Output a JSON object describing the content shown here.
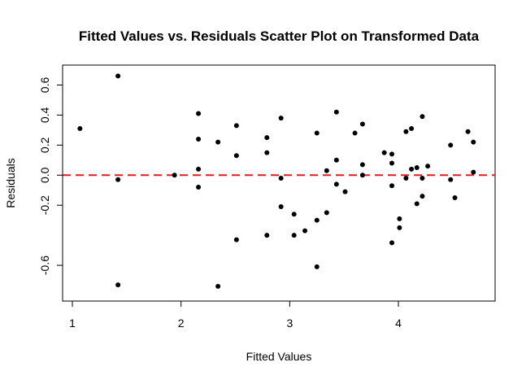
{
  "chart_data": {
    "type": "scatter",
    "title": "Fitted Values vs. Residuals Scatter Plot on Transformed Data",
    "xlabel": "Fitted Values",
    "ylabel": "Residuals",
    "xlim": [
      1.0,
      4.8
    ],
    "ylim": [
      -0.8,
      0.7
    ],
    "x_ticks": [
      1,
      2,
      3,
      4
    ],
    "x_tick_labels": [
      "1",
      "2",
      "3",
      "4"
    ],
    "y_ticks": [
      -0.6,
      -0.2,
      0.0,
      0.2,
      0.4,
      0.6
    ],
    "y_tick_labels": [
      "-0.6",
      "-0.2",
      "0.0",
      "0.2",
      "0.4",
      "0.6"
    ],
    "grid": false,
    "legend": "none",
    "reference_line": {
      "y": 0.0,
      "style": "dashed",
      "color": "#e8191f"
    },
    "point_color": "#000000",
    "points": [
      {
        "x": 1.07,
        "y": 0.31
      },
      {
        "x": 1.42,
        "y": 0.66
      },
      {
        "x": 1.42,
        "y": -0.03
      },
      {
        "x": 1.42,
        "y": -0.73
      },
      {
        "x": 1.94,
        "y": 0.0
      },
      {
        "x": 2.16,
        "y": 0.41
      },
      {
        "x": 2.16,
        "y": 0.24
      },
      {
        "x": 2.16,
        "y": 0.04
      },
      {
        "x": 2.16,
        "y": -0.08
      },
      {
        "x": 2.34,
        "y": 0.22
      },
      {
        "x": 2.34,
        "y": -0.74
      },
      {
        "x": 2.51,
        "y": 0.33
      },
      {
        "x": 2.51,
        "y": 0.13
      },
      {
        "x": 2.51,
        "y": -0.43
      },
      {
        "x": 2.79,
        "y": 0.25
      },
      {
        "x": 2.79,
        "y": 0.15
      },
      {
        "x": 2.79,
        "y": -0.4
      },
      {
        "x": 2.92,
        "y": 0.38
      },
      {
        "x": 2.92,
        "y": -0.02
      },
      {
        "x": 2.92,
        "y": -0.21
      },
      {
        "x": 3.04,
        "y": -0.26
      },
      {
        "x": 3.04,
        "y": -0.4
      },
      {
        "x": 3.14,
        "y": -0.37
      },
      {
        "x": 3.25,
        "y": 0.28
      },
      {
        "x": 3.25,
        "y": -0.3
      },
      {
        "x": 3.25,
        "y": -0.61
      },
      {
        "x": 3.34,
        "y": 0.03
      },
      {
        "x": 3.34,
        "y": -0.25
      },
      {
        "x": 3.43,
        "y": 0.42
      },
      {
        "x": 3.43,
        "y": 0.1
      },
      {
        "x": 3.43,
        "y": -0.06
      },
      {
        "x": 3.51,
        "y": -0.11
      },
      {
        "x": 3.6,
        "y": 0.28
      },
      {
        "x": 3.67,
        "y": 0.34
      },
      {
        "x": 3.67,
        "y": 0.07
      },
      {
        "x": 3.67,
        "y": 0.0
      },
      {
        "x": 3.87,
        "y": 0.15
      },
      {
        "x": 3.94,
        "y": 0.14
      },
      {
        "x": 3.94,
        "y": 0.08
      },
      {
        "x": 3.94,
        "y": -0.07
      },
      {
        "x": 3.94,
        "y": -0.45
      },
      {
        "x": 4.01,
        "y": -0.29
      },
      {
        "x": 4.01,
        "y": -0.35
      },
      {
        "x": 4.07,
        "y": 0.29
      },
      {
        "x": 4.07,
        "y": -0.02
      },
      {
        "x": 4.12,
        "y": 0.31
      },
      {
        "x": 4.12,
        "y": 0.04
      },
      {
        "x": 4.17,
        "y": 0.05
      },
      {
        "x": 4.17,
        "y": -0.19
      },
      {
        "x": 4.22,
        "y": 0.39
      },
      {
        "x": 4.22,
        "y": -0.02
      },
      {
        "x": 4.22,
        "y": -0.14
      },
      {
        "x": 4.27,
        "y": 0.06
      },
      {
        "x": 4.48,
        "y": 0.2
      },
      {
        "x": 4.48,
        "y": -0.03
      },
      {
        "x": 4.52,
        "y": -0.15
      },
      {
        "x": 4.64,
        "y": 0.29
      },
      {
        "x": 4.69,
        "y": 0.22
      },
      {
        "x": 4.69,
        "y": 0.02
      }
    ]
  }
}
